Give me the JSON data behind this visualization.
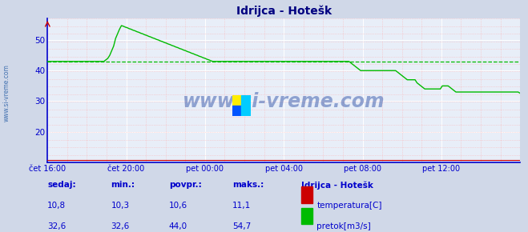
{
  "title": "Idrijca - Hotešk",
  "bg_color": "#d0d8e8",
  "plot_bg_color": "#e8eef8",
  "grid_color_major": "#aabbdd",
  "grid_color_minor": "#ffaaaa",
  "axis_color": "#0000cc",
  "xlabel_color": "#0000cc",
  "ylabel_color": "#0000cc",
  "title_color": "#000080",
  "watermark": "www.si-vreme.com",
  "xlim": [
    0,
    288
  ],
  "ylim_min": 10,
  "ylim_max": 57,
  "yticks": [
    20,
    30,
    40,
    50
  ],
  "xtick_labels": [
    "čet 16:00",
    "čet 20:00",
    "pet 00:00",
    "pet 04:00",
    "pet 08:00",
    "pet 12:00"
  ],
  "xtick_positions": [
    0,
    48,
    96,
    144,
    192,
    240
  ],
  "avg_line_value": 43.0,
  "temp_color": "#cc0000",
  "flow_color": "#00bb00",
  "temp_avg": 10.6,
  "temp_min": 10.3,
  "temp_max": 11.1,
  "temp_current": 10.8,
  "flow_avg": 44.0,
  "flow_min": 32.6,
  "flow_max": 54.7,
  "flow_current": 32.6,
  "legend_title": "Idrijca - Hotešk",
  "footer_label_color": "#0000cc",
  "watermark_color": "#3355aa",
  "left_label": "www.si-vreme.com",
  "flow_data": [
    43.0,
    43.0,
    43.0,
    43.0,
    43.0,
    43.0,
    43.0,
    43.0,
    43.0,
    43.0,
    43.0,
    43.0,
    43.0,
    43.0,
    43.0,
    43.0,
    43.0,
    43.0,
    43.0,
    43.0,
    43.0,
    43.0,
    43.0,
    43.0,
    43.0,
    43.0,
    43.0,
    43.0,
    43.0,
    43.0,
    43.5,
    44.0,
    45.0,
    46.5,
    48.0,
    50.5,
    52.0,
    53.5,
    54.7,
    54.5,
    54.2,
    54.0,
    53.7,
    53.5,
    53.2,
    53.0,
    52.7,
    52.5,
    52.2,
    52.0,
    51.7,
    51.5,
    51.2,
    51.0,
    50.7,
    50.5,
    50.2,
    50.0,
    49.7,
    49.5,
    49.2,
    49.0,
    48.7,
    48.5,
    48.2,
    48.0,
    47.7,
    47.5,
    47.2,
    47.0,
    46.7,
    46.5,
    46.2,
    46.0,
    45.7,
    45.5,
    45.2,
    45.0,
    44.7,
    44.5,
    44.2,
    44.0,
    43.7,
    43.5,
    43.2,
    43.0,
    43.0,
    43.0,
    43.0,
    43.0,
    43.0,
    43.0,
    43.0,
    43.0,
    43.0,
    43.0,
    43.0,
    43.0,
    43.0,
    43.0,
    43.0,
    43.0,
    43.0,
    43.0,
    43.0,
    43.0,
    43.0,
    43.0,
    43.0,
    43.0,
    43.0,
    43.0,
    43.0,
    43.0,
    43.0,
    43.0,
    43.0,
    43.0,
    43.0,
    43.0,
    43.0,
    43.0,
    43.0,
    43.0,
    43.0,
    43.0,
    43.0,
    43.0,
    43.0,
    43.0,
    43.0,
    43.0,
    43.0,
    43.0,
    43.0,
    43.0,
    43.0,
    43.0,
    43.0,
    43.0,
    43.0,
    43.0,
    43.0,
    43.0,
    43.0,
    43.0,
    43.0,
    43.0,
    43.0,
    43.0,
    43.0,
    43.0,
    43.0,
    43.0,
    43.0,
    43.0,
    42.5,
    42.0,
    41.5,
    41.0,
    40.5,
    40.0,
    40.0,
    40.0,
    40.0,
    40.0,
    40.0,
    40.0,
    40.0,
    40.0,
    40.0,
    40.0,
    40.0,
    40.0,
    40.0,
    40.0,
    40.0,
    40.0,
    40.0,
    40.0,
    39.5,
    39.0,
    38.5,
    38.0,
    37.5,
    37.0,
    37.0,
    37.0,
    37.0,
    37.0,
    36.0,
    35.5,
    35.0,
    34.5,
    34.0,
    34.0,
    34.0,
    34.0,
    34.0,
    34.0,
    34.0,
    34.0,
    34.0,
    35.0,
    35.0,
    35.0,
    35.0,
    34.5,
    34.0,
    33.5,
    33.0,
    33.0,
    33.0,
    33.0,
    33.0,
    33.0,
    33.0,
    33.0,
    33.0,
    33.0,
    33.0,
    33.0,
    33.0,
    33.0,
    33.0,
    33.0,
    33.0,
    33.0,
    33.0,
    33.0,
    33.0,
    33.0,
    33.0,
    33.0,
    33.0,
    33.0,
    33.0,
    33.0,
    33.0,
    33.0,
    33.0,
    33.0,
    33.0,
    32.6
  ],
  "temp_data_flat": 10.8
}
